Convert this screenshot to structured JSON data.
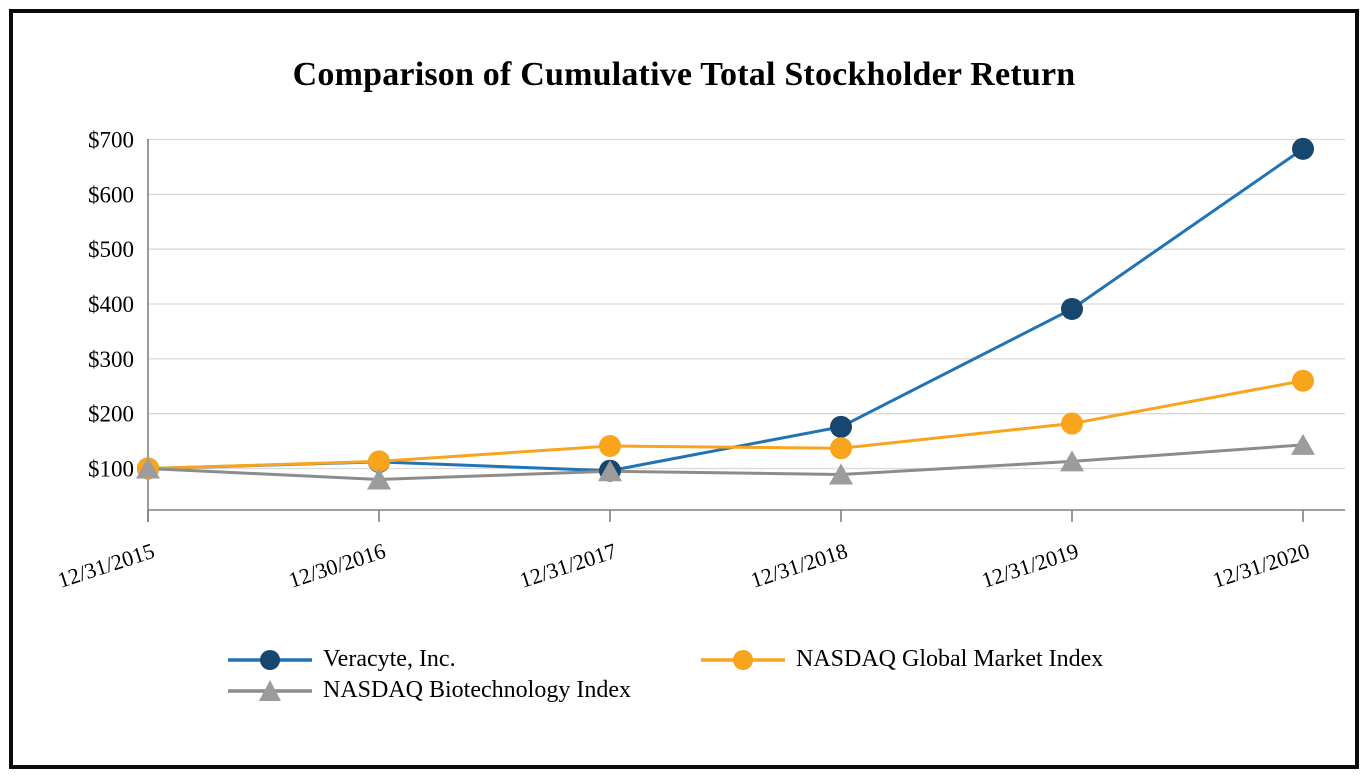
{
  "chart_data": {
    "type": "line",
    "title": "Comparison of Cumulative Total Stockholder Return",
    "categories": [
      "12/31/2015",
      "12/30/2016",
      "12/31/2017",
      "12/31/2018",
      "12/31/2019",
      "12/31/2020"
    ],
    "series": [
      {
        "id": "veracyte",
        "name": "Veracyte, Inc.",
        "marker": "circle",
        "line_color": "#2173B4",
        "marker_color": "#17466F",
        "values": [
          100,
          112,
          96,
          176,
          391,
          683
        ]
      },
      {
        "id": "nasdaq-global-market-index",
        "name": "NASDAQ Global Market Index",
        "marker": "circle",
        "line_color": "#F8A41D",
        "marker_color": "#F8A41D",
        "values": [
          100,
          113,
          141,
          137,
          182,
          260
        ]
      },
      {
        "id": "nasdaq-biotechnology-index",
        "name": "NASDAQ Biotechnology Index",
        "marker": "triangle",
        "line_color": "#8C8C8C",
        "marker_color": "#9C9C9C",
        "values": [
          100,
          80,
          95,
          89,
          113,
          143
        ]
      }
    ],
    "y_axis": {
      "tick_labels": [
        "$100",
        "$200",
        "$300",
        "$400",
        "$500",
        "$600",
        "$700"
      ],
      "tick_values": [
        100,
        200,
        300,
        400,
        500,
        600,
        700
      ],
      "prefix": "$"
    },
    "ylim": [
      0,
      700
    ],
    "grid": "horizontal",
    "legend_position": "bottom"
  },
  "colors": {
    "axis": "#808080",
    "gridline": "#D9D9D9",
    "frame_border": "#0A0A0A",
    "background": "#FFFFFF",
    "text": "#000000"
  }
}
